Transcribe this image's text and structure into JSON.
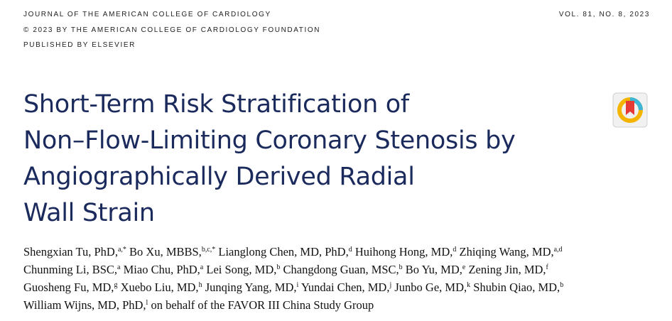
{
  "header": {
    "journal": "JOURNAL OF THE AMERICAN COLLEGE OF CARDIOLOGY",
    "copyright": "© 2023 BY THE AMERICAN COLLEGE OF CARDIOLOGY FOUNDATION",
    "publisher": "PUBLISHED BY ELSEVIER",
    "volume": "VOL. 81, NO. 8, 2023"
  },
  "title_lines": [
    "Short-Term Risk Stratification of",
    "Non–Flow-Limiting Coronary Stenosis by",
    "Angiographically Derived Radial",
    "Wall Strain"
  ],
  "author_lines": [
    [
      {
        "text": "Shengxian Tu, PhD,",
        "sup": "a,*"
      },
      {
        "text": "Bo Xu, MBBS,",
        "sup": "b,c,*"
      },
      {
        "text": "Lianglong Chen, MD, PhD,",
        "sup": "d"
      },
      {
        "text": "Huihong Hong, MD,",
        "sup": "d"
      },
      {
        "text": "Zhiqing Wang, MD,",
        "sup": "a,d"
      }
    ],
    [
      {
        "text": "Chunming Li, BSC,",
        "sup": "a"
      },
      {
        "text": "Miao Chu, PhD,",
        "sup": "a"
      },
      {
        "text": "Lei Song, MD,",
        "sup": "b"
      },
      {
        "text": "Changdong Guan, MSC,",
        "sup": "b"
      },
      {
        "text": "Bo Yu, MD,",
        "sup": "e"
      },
      {
        "text": "Zening Jin, MD,",
        "sup": "f"
      }
    ],
    [
      {
        "text": "Guosheng Fu, MD,",
        "sup": "g"
      },
      {
        "text": "Xuebo Liu, MD,",
        "sup": "h"
      },
      {
        "text": "Junqing Yang, MD,",
        "sup": "i"
      },
      {
        "text": "Yundai Chen, MD,",
        "sup": "j"
      },
      {
        "text": "Junbo Ge, MD,",
        "sup": "k"
      },
      {
        "text": "Shubin Qiao, MD,",
        "sup": "b"
      }
    ],
    [
      {
        "text": "William Wijns, MD, PhD,",
        "sup": "l"
      },
      {
        "text": "on behalf of the FAVOR III China Study Group"
      }
    ]
  ]
}
